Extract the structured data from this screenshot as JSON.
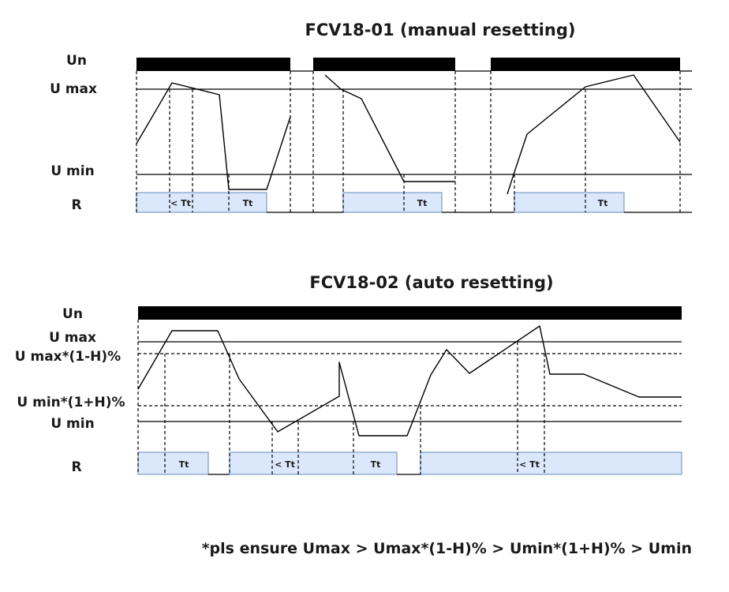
{
  "diagram1": {
    "title": "FCV18-01 (manual resetting)",
    "labels": {
      "un": "Un",
      "umax": "U max",
      "umin": "U min",
      "r": "R"
    },
    "tt_labels": [
      "< Tt",
      "Tt",
      "Tt",
      "Tt"
    ]
  },
  "diagram2": {
    "title": "FCV18-02 (auto resetting)",
    "labels": {
      "un": "Un",
      "umax": "U max",
      "umax_h": "U max*(1-H)%",
      "umin_h": "U min*(1+H)%",
      "umin": "U min",
      "r": "R"
    },
    "tt_labels": [
      "Tt",
      "< Tt",
      "Tt",
      "< Tt"
    ]
  },
  "footnote": "*pls ensure Umax > Umax*(1-H)% > Umin*(1+H)% > Umin"
}
